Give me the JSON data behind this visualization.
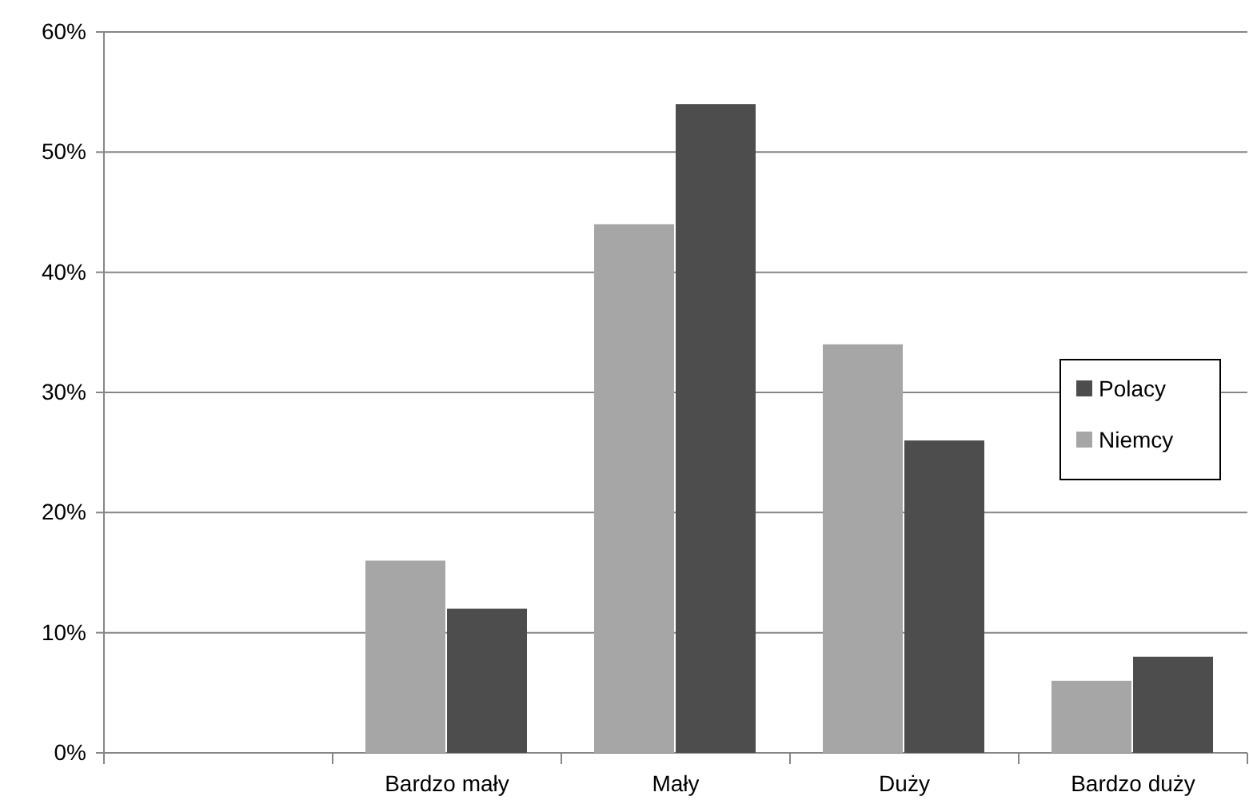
{
  "chart_data": {
    "type": "bar",
    "categories": [
      null,
      "Bardzo mały",
      "Mały",
      "Duży",
      "Bardzo duży"
    ],
    "series": [
      {
        "name": "Niemcy",
        "color": "#a6a6a6",
        "values": [
          null,
          16,
          44,
          34,
          6
        ]
      },
      {
        "name": "Polacy",
        "color": "#4d4d4d",
        "values": [
          null,
          12,
          54,
          26,
          8
        ]
      }
    ],
    "ylim": [
      0,
      60
    ],
    "yticks": [
      {
        "value": 0,
        "label": "0%"
      },
      {
        "value": 10,
        "label": "10%"
      },
      {
        "value": 20,
        "label": "20%"
      },
      {
        "value": 30,
        "label": "30%"
      },
      {
        "value": 40,
        "label": "40%"
      },
      {
        "value": 50,
        "label": "50%"
      },
      {
        "value": 60,
        "label": "60%"
      }
    ],
    "grid": "y",
    "legend": "right"
  }
}
